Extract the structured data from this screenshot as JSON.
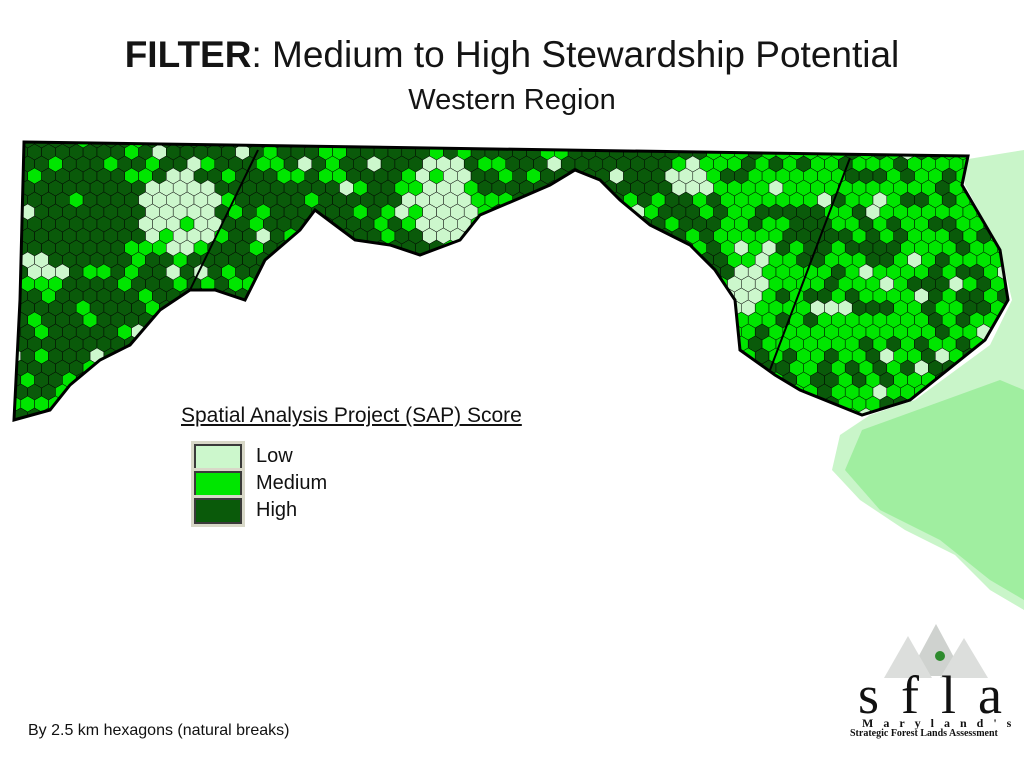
{
  "title": {
    "bold": "FILTER",
    "rest": ":  Medium to High Stewardship Potential"
  },
  "subtitle": "Western Region",
  "legend": {
    "title": "Spatial Analysis Project (SAP) Score",
    "items": [
      {
        "label": "Low",
        "color": "#ccf7cc"
      },
      {
        "label": "Medium",
        "color": "#00e600"
      },
      {
        "label": "High",
        "color": "#0a5a0a"
      }
    ]
  },
  "footnote": "By 2.5 km hexagons (natural breaks)",
  "logo": {
    "letters": "sfla",
    "state": "Maryland's",
    "tagline": "Strategic Forest Lands Assessment"
  },
  "colors": {
    "low": "#ccf7cc",
    "medium": "#00e600",
    "high": "#0a5a0a",
    "outline": "#000000"
  }
}
